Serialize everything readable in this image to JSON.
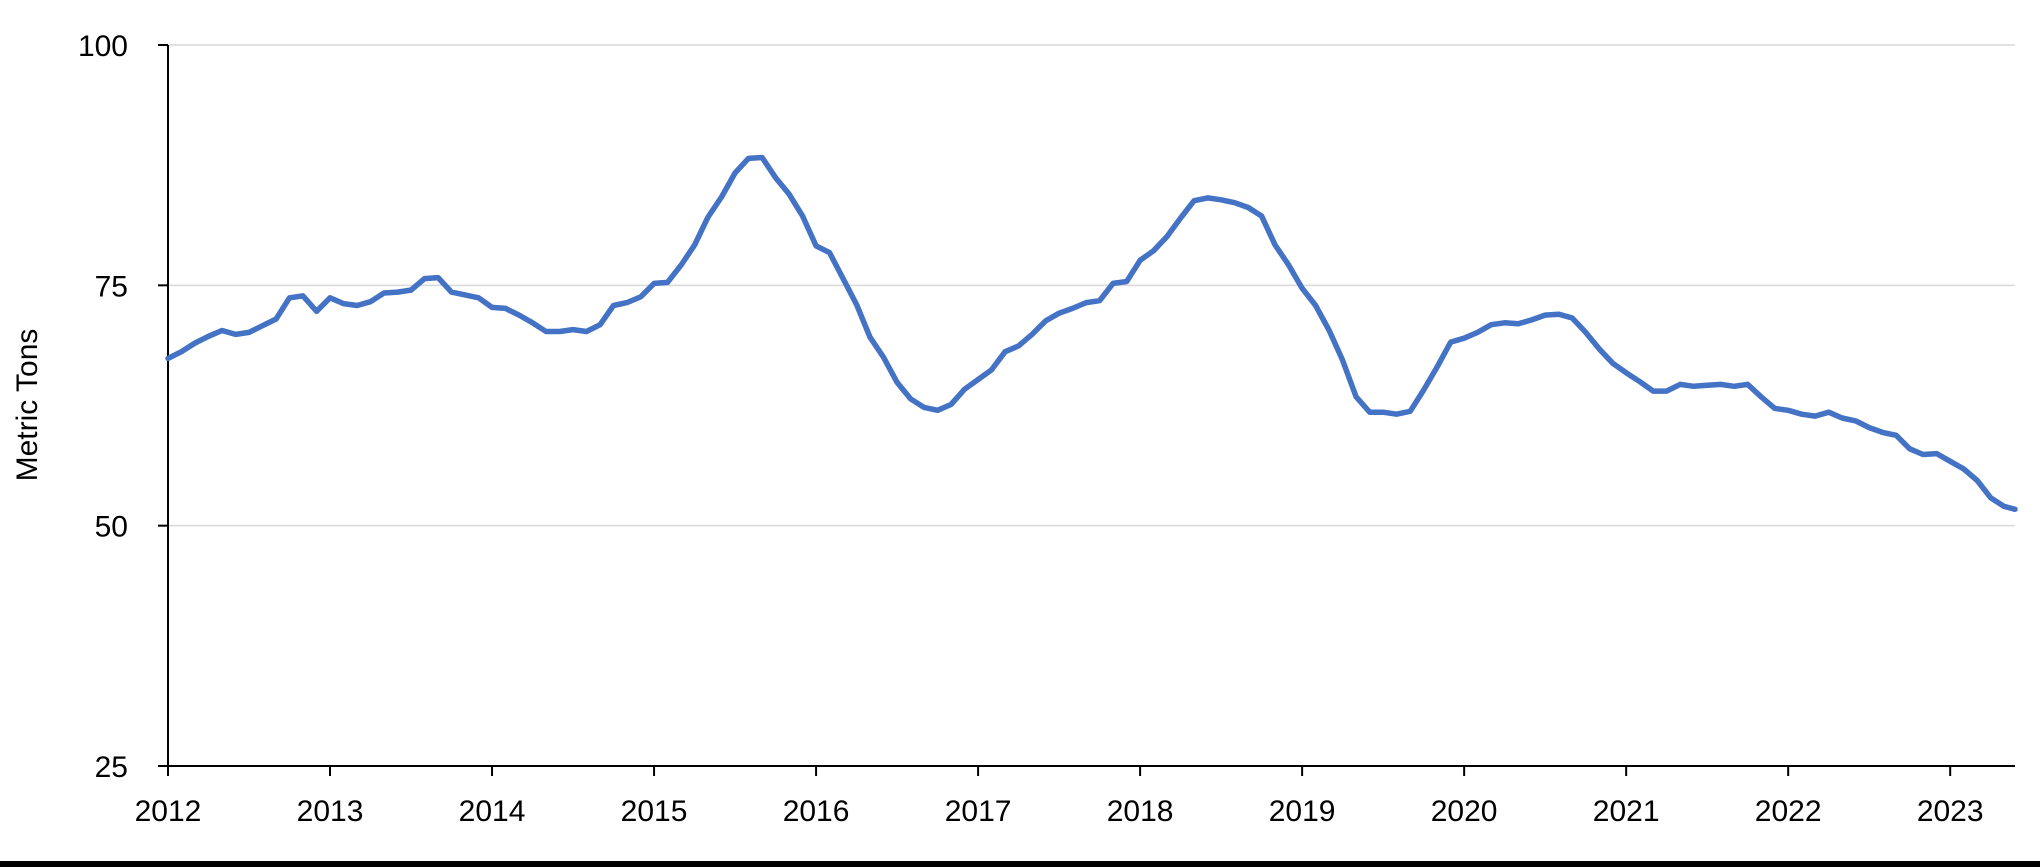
{
  "chart_data": {
    "type": "line",
    "title": "",
    "xlabel": "",
    "ylabel": "Metric Tons",
    "xlim": [
      2012,
      2023.4
    ],
    "ylim": [
      25,
      100
    ],
    "x_ticks": [
      "2012",
      "2013",
      "2014",
      "2015",
      "2016",
      "2017",
      "2018",
      "2019",
      "2020",
      "2021",
      "2022",
      "2023"
    ],
    "y_ticks": [
      "25",
      "50",
      "75",
      "100"
    ],
    "grid": "horizontal",
    "colors": {
      "line": "#4472C4",
      "grid": "#D9D9D9",
      "axis": "#000000"
    },
    "series": [
      {
        "x": [
          2012.0,
          2012.083,
          2012.167,
          2012.25,
          2012.333,
          2012.417,
          2012.5,
          2012.583,
          2012.667,
          2012.75,
          2012.833,
          2012.917,
          2013.0,
          2013.083,
          2013.167,
          2013.25,
          2013.333,
          2013.417,
          2013.5,
          2013.583,
          2013.667,
          2013.75,
          2013.833,
          2013.917,
          2014.0,
          2014.083,
          2014.167,
          2014.25,
          2014.333,
          2014.417,
          2014.5,
          2014.583,
          2014.667,
          2014.75,
          2014.833,
          2014.917,
          2015.0,
          2015.083,
          2015.167,
          2015.25,
          2015.333,
          2015.417,
          2015.5,
          2015.583,
          2015.667,
          2015.75,
          2015.833,
          2015.917,
          2016.0,
          2016.083,
          2016.167,
          2016.25,
          2016.333,
          2016.417,
          2016.5,
          2016.583,
          2016.667,
          2016.75,
          2016.833,
          2016.917,
          2017.0,
          2017.083,
          2017.167,
          2017.25,
          2017.333,
          2017.417,
          2017.5,
          2017.583,
          2017.667,
          2017.75,
          2017.833,
          2017.917,
          2018.0,
          2018.083,
          2018.167,
          2018.25,
          2018.333,
          2018.417,
          2018.5,
          2018.583,
          2018.667,
          2018.75,
          2018.833,
          2018.917,
          2019.0,
          2019.083,
          2019.167,
          2019.25,
          2019.333,
          2019.417,
          2019.5,
          2019.583,
          2019.667,
          2019.75,
          2019.833,
          2019.917,
          2020.0,
          2020.083,
          2020.167,
          2020.25,
          2020.333,
          2020.417,
          2020.5,
          2020.583,
          2020.667,
          2020.75,
          2020.833,
          2020.917,
          2021.0,
          2021.083,
          2021.167,
          2021.25,
          2021.333,
          2021.417,
          2021.5,
          2021.583,
          2021.667,
          2021.75,
          2021.833,
          2021.917,
          2022.0,
          2022.083,
          2022.167,
          2022.25,
          2022.333,
          2022.417,
          2022.5,
          2022.583,
          2022.667,
          2022.75,
          2022.833,
          2022.917,
          2023.0,
          2023.083,
          2023.167,
          2023.25,
          2023.333,
          2023.4
        ],
        "values": [
          67.4,
          68.1,
          69.0,
          69.7,
          70.3,
          69.9,
          70.1,
          70.8,
          71.5,
          73.7,
          73.9,
          72.3,
          73.7,
          73.1,
          72.9,
          73.3,
          74.2,
          74.3,
          74.5,
          75.7,
          75.8,
          74.3,
          74.0,
          73.7,
          72.7,
          72.6,
          71.9,
          71.1,
          70.2,
          70.2,
          70.4,
          70.2,
          70.9,
          72.9,
          73.2,
          73.8,
          75.2,
          75.3,
          77.1,
          79.2,
          82.1,
          84.2,
          86.7,
          88.2,
          88.3,
          86.2,
          84.5,
          82.2,
          79.1,
          78.4,
          75.7,
          73.0,
          69.6,
          67.5,
          64.9,
          63.2,
          62.3,
          62.0,
          62.6,
          64.2,
          65.2,
          66.2,
          68.1,
          68.7,
          69.9,
          71.3,
          72.1,
          72.6,
          73.2,
          73.4,
          75.2,
          75.4,
          77.6,
          78.6,
          80.1,
          82.0,
          83.8,
          84.1,
          83.9,
          83.6,
          83.1,
          82.2,
          79.2,
          77.1,
          74.7,
          72.9,
          70.3,
          67.2,
          63.4,
          61.8,
          61.8,
          61.6,
          61.9,
          64.1,
          66.5,
          69.1,
          69.5,
          70.1,
          70.9,
          71.1,
          71.0,
          71.4,
          71.9,
          72.0,
          71.6,
          70.1,
          68.4,
          66.9,
          65.9,
          65.0,
          64.0,
          64.0,
          64.7,
          64.5,
          64.6,
          64.7,
          64.5,
          64.7,
          63.4,
          62.2,
          62.0,
          61.6,
          61.4,
          61.8,
          61.2,
          60.9,
          60.2,
          59.7,
          59.4,
          58.0,
          57.4,
          57.5,
          56.7,
          55.9,
          54.7,
          52.9,
          52.0,
          51.7
        ]
      }
    ]
  }
}
